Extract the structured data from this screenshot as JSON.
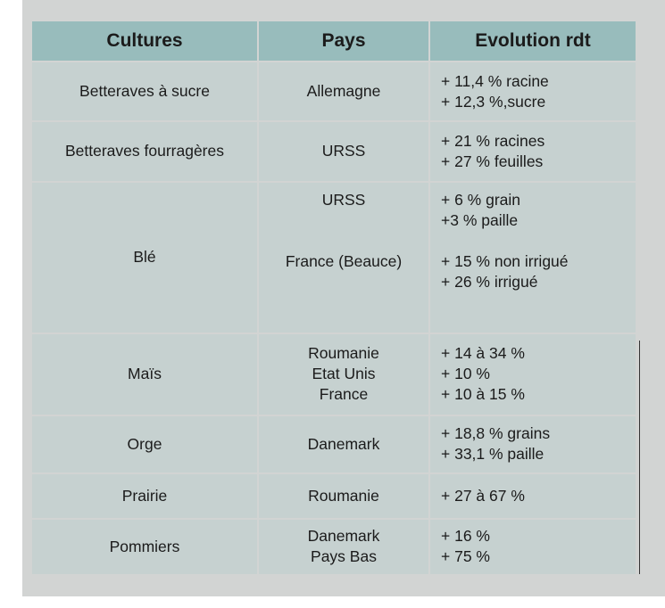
{
  "table": {
    "headers": [
      "Cultures",
      "Pays",
      "Evolution rdt"
    ],
    "rows": [
      {
        "culture": "Betteraves à sucre",
        "pays": [
          "Allemagne"
        ],
        "evolution": [
          "+ 11,4 % racine",
          "+ 12,3 %,sucre"
        ]
      },
      {
        "culture": "Betteraves fourragères",
        "pays": [
          "URSS"
        ],
        "evolution": [
          "+ 21 % racines",
          "+ 27 % feuilles"
        ]
      },
      {
        "culture": "Blé",
        "pays": [
          "URSS",
          "France (Beauce)"
        ],
        "evolution": [
          "+ 6 % grain",
          "+3 % paille",
          "+ 15 % non irrigué",
          "+ 26 % irrigué"
        ]
      },
      {
        "culture": "Maïs",
        "pays": [
          "Roumanie",
          "Etat Unis",
          "France"
        ],
        "evolution": [
          "+ 14 à 34 %",
          "+ 10 %",
          "+ 10 à 15 %"
        ]
      },
      {
        "culture": "Orge",
        "pays": [
          "Danemark"
        ],
        "evolution": [
          "+ 18,8 % grains",
          "+ 33,1 % paille"
        ]
      },
      {
        "culture": "Prairie",
        "pays": [
          "Roumanie"
        ],
        "evolution": [
          "+ 27 à 67 %"
        ]
      },
      {
        "culture": "Pommiers",
        "pays": [
          "Danemark",
          "Pays Bas"
        ],
        "evolution": [
          "+ 16 %",
          "+ 75 %"
        ]
      }
    ]
  },
  "colors": {
    "header_bg": "#98bcbc",
    "cell_bg": "#c6d1d0",
    "frame_bg": "#d2d4d3"
  }
}
